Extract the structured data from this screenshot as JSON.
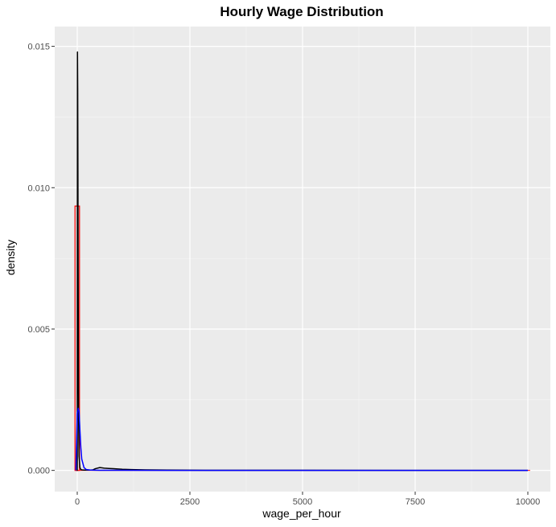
{
  "chart_data": {
    "type": "histogram",
    "title": "Hourly Wage Distribution",
    "xlabel": "wage_per_hour",
    "ylabel": "density",
    "xlim": [
      -500,
      10500
    ],
    "ylim": [
      -0.00075,
      0.0157
    ],
    "x_ticks": [
      0,
      2500,
      5000,
      7500,
      10000
    ],
    "x_tick_labels": [
      "0",
      "2500",
      "5000",
      "7500",
      "10000"
    ],
    "y_ticks": [
      0.0,
      0.005,
      0.01,
      0.015
    ],
    "y_tick_labels": [
      "0.000",
      "0.005",
      "0.010",
      "0.015"
    ],
    "grid": true,
    "histogram": {
      "bin_width": 100,
      "fill": "#e2e2e2",
      "outline": "#ff0000",
      "bins": [
        {
          "x0": -50,
          "x1": 50,
          "density": 0.00935
        }
      ],
      "baseline_range": [
        -50,
        10050
      ]
    },
    "series": [
      {
        "color": "#000000",
        "x": [
          -10,
          0,
          5,
          10,
          15,
          20,
          25,
          30,
          40,
          60,
          80,
          100,
          150,
          200,
          300,
          350,
          400,
          500,
          600,
          700,
          800,
          900,
          1000,
          1200,
          1500,
          2000,
          3000,
          5000,
          7500,
          10000
        ],
        "y": [
          0.0,
          0.0,
          0.0148,
          0.0135,
          0.0105,
          0.007,
          0.004,
          0.0018,
          0.0005,
          0.0001,
          3e-05,
          2e-05,
          1e-05,
          1e-05,
          1e-05,
          2e-05,
          6e-05,
          0.0001,
          8e-05,
          7e-05,
          6e-05,
          5e-05,
          4e-05,
          3e-05,
          2e-05,
          1e-05,
          5e-06,
          3e-06,
          2e-06,
          1e-06
        ]
      },
      {
        "color": "#0000ff",
        "x": [
          -30,
          0,
          20,
          40,
          60,
          80,
          100,
          150,
          200,
          300,
          500,
          1000,
          2000,
          5000,
          10000
        ],
        "y": [
          0.0,
          0.002,
          0.0022,
          0.0021,
          0.0014,
          0.0008,
          0.0004,
          0.0001,
          3e-05,
          1e-05,
          5e-06,
          3e-06,
          2e-06,
          1e-06,
          0.0
        ]
      }
    ]
  }
}
